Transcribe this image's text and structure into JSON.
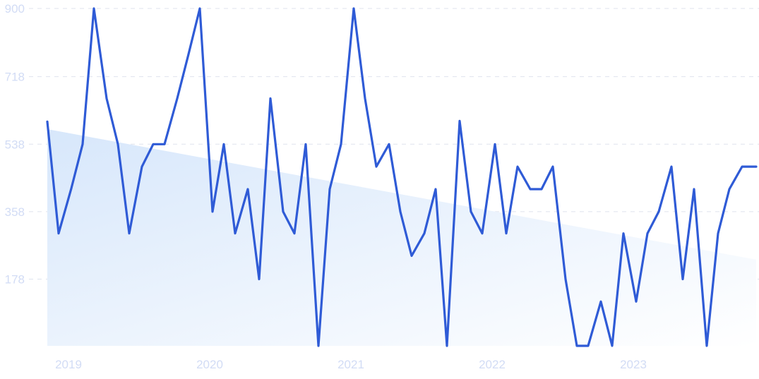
{
  "colors": {
    "line": "#2f5bd6",
    "area_top": "#d7e7fb",
    "area_bottom": "#ffffff",
    "grid": "#dfe3ee",
    "tick_text": "#d2dcf5"
  },
  "chart_data": {
    "type": "line",
    "title": "",
    "xlabel": "",
    "ylabel": "",
    "ylim": [
      0,
      900
    ],
    "y_ticks": [
      {
        "value": 178,
        "label": "178"
      },
      {
        "value": 358,
        "label": "358"
      },
      {
        "value": 538,
        "label": "538"
      },
      {
        "value": 718,
        "label": "718"
      },
      {
        "value": 900,
        "label": "900"
      }
    ],
    "x_ticks": [
      {
        "value": 2019.05,
        "label": "2019"
      },
      {
        "value": 2020.05,
        "label": "2020"
      },
      {
        "value": 2021.05,
        "label": "2021"
      },
      {
        "value": 2022.05,
        "label": "2022"
      },
      {
        "value": 2023.05,
        "label": "2023"
      }
    ],
    "xlim": [
      2018.9,
      2023.92
    ],
    "grid": true,
    "legend": "none",
    "series": [
      {
        "x": [
          2018.9,
          2018.98,
          2019.07,
          2019.15,
          2019.23,
          2019.32,
          2019.4,
          2019.48,
          2019.57,
          2019.65,
          2019.73,
          2019.82,
          2019.9,
          2019.98,
          2020.07,
          2020.15,
          2020.23,
          2020.32,
          2020.4,
          2020.48,
          2020.57,
          2020.65,
          2020.73,
          2020.82,
          2020.9,
          2020.98,
          2021.07,
          2021.15,
          2021.23,
          2021.32,
          2021.4,
          2021.48,
          2021.57,
          2021.65,
          2021.73,
          2021.82,
          2021.9,
          2021.98,
          2022.07,
          2022.15,
          2022.23,
          2022.32,
          2022.4,
          2022.48,
          2022.57,
          2022.65,
          2022.73,
          2022.82,
          2022.9,
          2022.98,
          2023.07,
          2023.15,
          2023.23,
          2023.32,
          2023.4,
          2023.48,
          2023.57,
          2023.65,
          2023.73,
          2023.82,
          2023.92
        ],
        "values": [
          598,
          300,
          420,
          538,
          900,
          660,
          538,
          300,
          478,
          538,
          538,
          660,
          778,
          900,
          358,
          538,
          300,
          418,
          178,
          660,
          358,
          300,
          538,
          0,
          418,
          538,
          900,
          660,
          478,
          538,
          358,
          240,
          300,
          418,
          0,
          600,
          358,
          300,
          538,
          300,
          478,
          418,
          418,
          478,
          178,
          0,
          0,
          118,
          0,
          300,
          118,
          300,
          358,
          478,
          178,
          418,
          0,
          300,
          418,
          478,
          478
        ]
      }
    ],
    "trend": {
      "start": [
        2018.9,
        578
      ],
      "end": [
        2023.92,
        230
      ]
    }
  }
}
